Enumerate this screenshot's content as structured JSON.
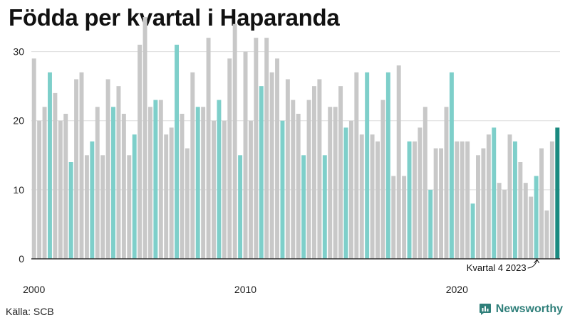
{
  "title": "Födda per kvartal i Haparanda",
  "source": "Källa: SCB",
  "brand": {
    "name": "Newsworthy",
    "icon": "newsworthy-logo-icon"
  },
  "colors": {
    "gray": "#c8c8c8",
    "teal": "#7ecfca",
    "highlight": "#1a8a80",
    "grid": "#dddddd",
    "axis": "#333333"
  },
  "chart_data": {
    "type": "bar",
    "title": "Födda per kvartal i Haparanda",
    "xlabel": "",
    "ylabel": "",
    "ylim": [
      0,
      35
    ],
    "yticks": [
      0,
      10,
      20,
      30
    ],
    "xtick_labels": [
      {
        "label": "2000",
        "index": 0
      },
      {
        "label": "2010",
        "index": 40
      },
      {
        "label": "2020",
        "index": 80
      }
    ],
    "annotation": {
      "text": "Kvartal 4 2023",
      "index": 95
    },
    "series": [
      {
        "name": "Födda",
        "start": "2000 Q1",
        "values": [
          29,
          20,
          22,
          27,
          24,
          20,
          21,
          14,
          26,
          27,
          15,
          17,
          22,
          15,
          26,
          22,
          25,
          21,
          15,
          18,
          31,
          35,
          22,
          23,
          23,
          18,
          19,
          31,
          21,
          16,
          27,
          22,
          22,
          32,
          20,
          23,
          20,
          29,
          34,
          15,
          30,
          20,
          32,
          25,
          32,
          27,
          29,
          20,
          26,
          23,
          21,
          15,
          23,
          25,
          26,
          15,
          22,
          22,
          25,
          19,
          20,
          27,
          18,
          27,
          18,
          17,
          23,
          27,
          12,
          28,
          12,
          17,
          17,
          19,
          22,
          10,
          16,
          16,
          22,
          27,
          17,
          17,
          17,
          8,
          15,
          16,
          18,
          19,
          11,
          10,
          18,
          17,
          14,
          11,
          9,
          12,
          16,
          7,
          17,
          19
        ],
        "highlight_quarter": 4,
        "latest_index": 99
      }
    ]
  }
}
